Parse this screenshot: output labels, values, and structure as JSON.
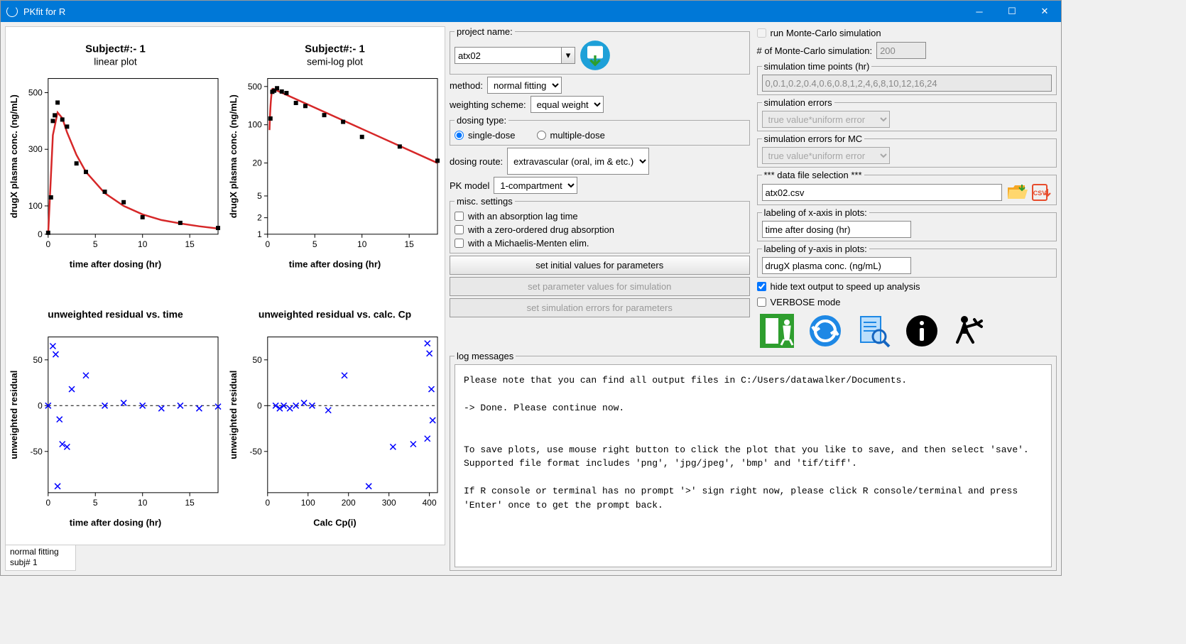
{
  "window": {
    "title": "PKfit for R"
  },
  "status": {
    "line1": "normal fitting",
    "line2": "subj# 1"
  },
  "plots": {
    "p1": {
      "supertitle": "Subject#:-  1",
      "subtitle": "linear plot",
      "xlabel": "time after dosing (hr)",
      "ylabel": "drugX plasma conc. (ng/mL)",
      "xlim": [
        0,
        18
      ],
      "xticks": [
        0,
        5,
        10,
        15
      ],
      "ylim": [
        0,
        550
      ],
      "yticks": [
        0,
        100,
        300,
        500
      ],
      "points": [
        [
          0,
          5
        ],
        [
          0.3,
          130
        ],
        [
          0.5,
          400
        ],
        [
          0.7,
          420
        ],
        [
          1,
          465
        ],
        [
          1.5,
          405
        ],
        [
          2,
          380
        ],
        [
          3,
          250
        ],
        [
          4,
          220
        ],
        [
          6,
          150
        ],
        [
          8,
          113
        ],
        [
          10,
          60
        ],
        [
          14,
          40
        ],
        [
          18,
          22
        ]
      ],
      "curve_y_at_x": {
        "0": 0,
        "0.5": 350,
        "1": 430,
        "1.5": 410,
        "2": 360,
        "3": 280,
        "4": 220,
        "6": 145,
        "8": 100,
        "10": 70,
        "12": 50,
        "14": 38,
        "16": 28,
        "18": 20
      },
      "point_color": "#000000",
      "line_color": "#d62728"
    },
    "p2": {
      "supertitle": "Subject#:-  1",
      "subtitle": "semi-log plot",
      "xlabel": "time after dosing (hr)",
      "ylabel": "drugX plasma conc. (ng/mL)",
      "xlim": [
        0,
        18
      ],
      "xticks": [
        0,
        5,
        10,
        15
      ],
      "yticks_log": [
        1,
        2,
        5,
        20,
        100,
        500
      ],
      "ylim_log": [
        1,
        700
      ],
      "points": [
        [
          0.3,
          130
        ],
        [
          0.5,
          400
        ],
        [
          0.7,
          420
        ],
        [
          1,
          465
        ],
        [
          1.5,
          405
        ],
        [
          2,
          380
        ],
        [
          3,
          250
        ],
        [
          4,
          220
        ],
        [
          6,
          150
        ],
        [
          8,
          113
        ],
        [
          10,
          60
        ],
        [
          14,
          40
        ],
        [
          18,
          22
        ]
      ],
      "line_start": [
        0.5,
        460
      ],
      "line_end": [
        18,
        20
      ],
      "point_color": "#000000",
      "line_color": "#d62728"
    },
    "p3": {
      "title": "unweighted residual vs. time",
      "xlabel": "time after dosing (hr)",
      "ylabel": "unweighted residual",
      "xlim": [
        0,
        18
      ],
      "xticks": [
        0,
        5,
        10,
        15
      ],
      "ylim": [
        -95,
        75
      ],
      "yticks": [
        -50,
        0,
        50
      ],
      "points": [
        [
          0,
          0
        ],
        [
          0.5,
          65
        ],
        [
          0.8,
          56
        ],
        [
          1,
          -88
        ],
        [
          1.2,
          -15
        ],
        [
          1.5,
          -42
        ],
        [
          2,
          -45
        ],
        [
          2.5,
          18
        ],
        [
          4,
          33
        ],
        [
          6,
          0
        ],
        [
          8,
          3
        ],
        [
          10,
          0
        ],
        [
          12,
          -3
        ],
        [
          14,
          0
        ],
        [
          16,
          -3
        ],
        [
          18,
          -1
        ]
      ],
      "point_color": "#0000ff"
    },
    "p4": {
      "title": "unweighted residual vs. calc. Cp",
      "xlabel": "Calc Cp(i)",
      "ylabel": "unweighted residual",
      "xlim": [
        0,
        420
      ],
      "xticks": [
        0,
        100,
        200,
        300,
        400
      ],
      "ylim": [
        -95,
        75
      ],
      "yticks": [
        -50,
        0,
        50
      ],
      "points": [
        [
          20,
          0
        ],
        [
          30,
          -3
        ],
        [
          40,
          0
        ],
        [
          55,
          -3
        ],
        [
          70,
          0
        ],
        [
          90,
          3
        ],
        [
          110,
          0
        ],
        [
          150,
          -5
        ],
        [
          190,
          33
        ],
        [
          250,
          -88
        ],
        [
          310,
          -45
        ],
        [
          360,
          -42
        ],
        [
          395,
          68
        ],
        [
          400,
          57
        ],
        [
          408,
          -16
        ],
        [
          395,
          -36
        ],
        [
          405,
          18
        ]
      ],
      "point_color": "#0000ff"
    }
  },
  "form": {
    "project_label": "project name:",
    "project_value": "atx02",
    "method_label": "method:",
    "method_value": "normal fitting",
    "weight_label": "weighting scheme:",
    "weight_value": "equal weight",
    "dosing_type_label": "dosing type:",
    "dose_single": "single-dose",
    "dose_multiple": "multiple-dose",
    "route_label": "dosing route:",
    "route_value": "extravascular\n(oral, im & etc.)",
    "pk_label": "PK model",
    "pk_value": "1-compartment",
    "misc_label": "misc. settings",
    "misc1": "with an absorption lag time",
    "misc2": "with a zero-ordered drug absorption",
    "misc3": "with a Michaelis-Menten elim.",
    "btn_init": "set initial values for parameters",
    "btn_sim_params": "set parameter values for simulation",
    "btn_sim_errors": "set simulation errors for parameters",
    "mc_run": "run Monte-Carlo simulation",
    "mc_n_label": "# of Monte-Carlo simulation:",
    "mc_n_value": "200",
    "sim_tp_label": "simulation time points (hr)",
    "sim_tp_value": "0,0.1,0.2,0.4,0.6,0.8,1,2,4,6,8,10,12,16,24",
    "sim_err_label": "simulation errors",
    "sim_err_value": "true value*uniform error",
    "sim_err_mc_label": "simulation errors for MC",
    "sim_err_mc_value": "true value*uniform error",
    "datafile_label": "*** data file selection ***",
    "datafile_value": "atx02.csv",
    "xlab_label": "labeling of x-axis in plots:",
    "xlab_value": "time after dosing (hr)",
    "ylab_label": "labeling of y-axis in plots:",
    "ylab_value": "drugX plasma conc. (ng/mL)",
    "hide_text": "hide text output to speed up analysis",
    "verbose": "VERBOSE mode"
  },
  "log": {
    "label": "log messages",
    "text": "Please note that you can find all output files in C:/Users/datawalker/Documents.\n\n-> Done. Please continue now.\n\n\nTo save plots, use mouse right button to click the plot that you like to save, and then select 'save'. Supported file format includes 'png', 'jpg/jpeg', 'bmp' and 'tif/tiff'.\n\nIf R console or terminal has no prompt '>' sign right now, please click R console/terminal and press 'Enter' once to get the prompt back."
  },
  "colors": {
    "titlebar": "#0078d7",
    "exit_icon": "#2e9e2e",
    "refresh_icon": "#1e88e5",
    "doc_icon": "#1e88e5",
    "csv_icon": "#e74c2c",
    "folder_icon": "#f5a623"
  }
}
